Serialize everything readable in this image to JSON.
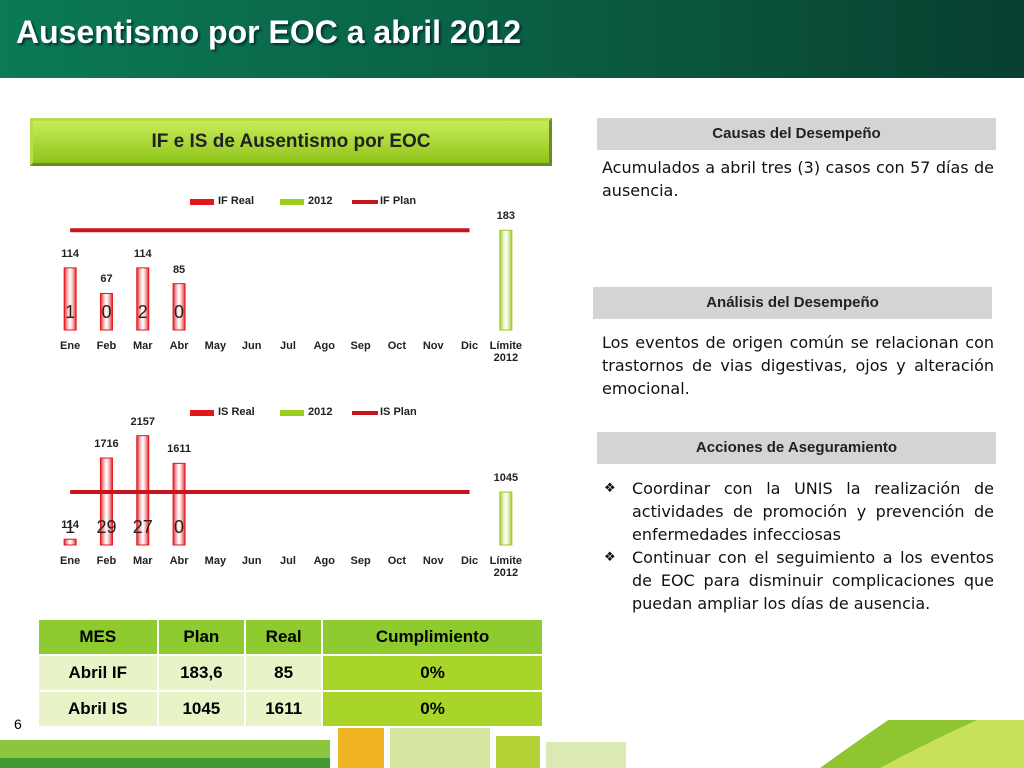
{
  "title": "Ausentismo por EOC a abril 2012",
  "chart_panel_title": "IF e IS de Ausentismo por EOC",
  "chart_data": [
    {
      "type": "bar",
      "categories": [
        "Ene",
        "Feb",
        "Mar",
        "Abr",
        "May",
        "Jun",
        "Jul",
        "Ago",
        "Sep",
        "Oct",
        "Nov",
        "Dic",
        "Límite 2012"
      ],
      "series": [
        {
          "name": "IF Real",
          "color": "#e3161c",
          "kind": "bar",
          "values": [
            114,
            67,
            114,
            85,
            null,
            null,
            null,
            null,
            null,
            null,
            null,
            null,
            null
          ]
        },
        {
          "name": "2012",
          "color": "#9ccc1e",
          "kind": "bar",
          "values": [
            null,
            null,
            null,
            null,
            null,
            null,
            null,
            null,
            null,
            null,
            null,
            null,
            183
          ]
        },
        {
          "name": "IF Plan",
          "color": "#c8141c",
          "kind": "line",
          "values": [
            183,
            183,
            183,
            183,
            183,
            183,
            183,
            183,
            183,
            183,
            183,
            183,
            null
          ]
        }
      ],
      "bar_annotations": [
        1,
        0,
        2,
        0
      ],
      "ylim": [
        0,
        200
      ],
      "legend": "top"
    },
    {
      "type": "bar",
      "categories": [
        "Ene",
        "Feb",
        "Mar",
        "Abr",
        "May",
        "Jun",
        "Jul",
        "Ago",
        "Sep",
        "Oct",
        "Nov",
        "Dic",
        "Límite 2012"
      ],
      "series": [
        {
          "name": "IS Real",
          "color": "#e3161c",
          "kind": "bar",
          "values": [
            114,
            1716,
            2157,
            1611,
            null,
            null,
            null,
            null,
            null,
            null,
            null,
            null,
            null
          ]
        },
        {
          "name": "2012",
          "color": "#9ccc1e",
          "kind": "bar",
          "values": [
            null,
            null,
            null,
            null,
            null,
            null,
            null,
            null,
            null,
            null,
            null,
            null,
            1045
          ]
        },
        {
          "name": "IS Plan",
          "color": "#c8141c",
          "kind": "line",
          "values": [
            1045,
            1045,
            1045,
            1045,
            1045,
            1045,
            1045,
            1045,
            1045,
            1045,
            1045,
            1045,
            null
          ]
        }
      ],
      "bar_annotations": [
        1,
        29,
        27,
        0
      ],
      "ylim": [
        0,
        2200
      ],
      "legend": "top"
    }
  ],
  "table": {
    "header": [
      "MES",
      "Plan",
      "Real",
      "Cumplimiento"
    ],
    "rows": [
      [
        "Abril IF",
        "183,6",
        "85",
        "0%"
      ],
      [
        "Abril IS",
        "1045",
        "1611",
        "0%"
      ]
    ]
  },
  "sections": [
    {
      "heading": "Causas del Desempeño",
      "text": "Acumulados a abril tres (3) casos con 57 días de ausencia."
    },
    {
      "heading": "Análisis del Desempeño",
      "text": "Los eventos de origen común se relacionan con trastornos de vias digestivas, ojos y alteración emocional."
    },
    {
      "heading": "Acciones de Aseguramiento",
      "items": [
        "Coordinar con la UNIS la realización de actividades de promoción y prevención de enfermedades infecciosas",
        "Continuar con el seguimiento a los eventos de EOC para disminuir complicaciones que puedan ampliar los días de ausencia."
      ]
    }
  ],
  "page_number": "6"
}
